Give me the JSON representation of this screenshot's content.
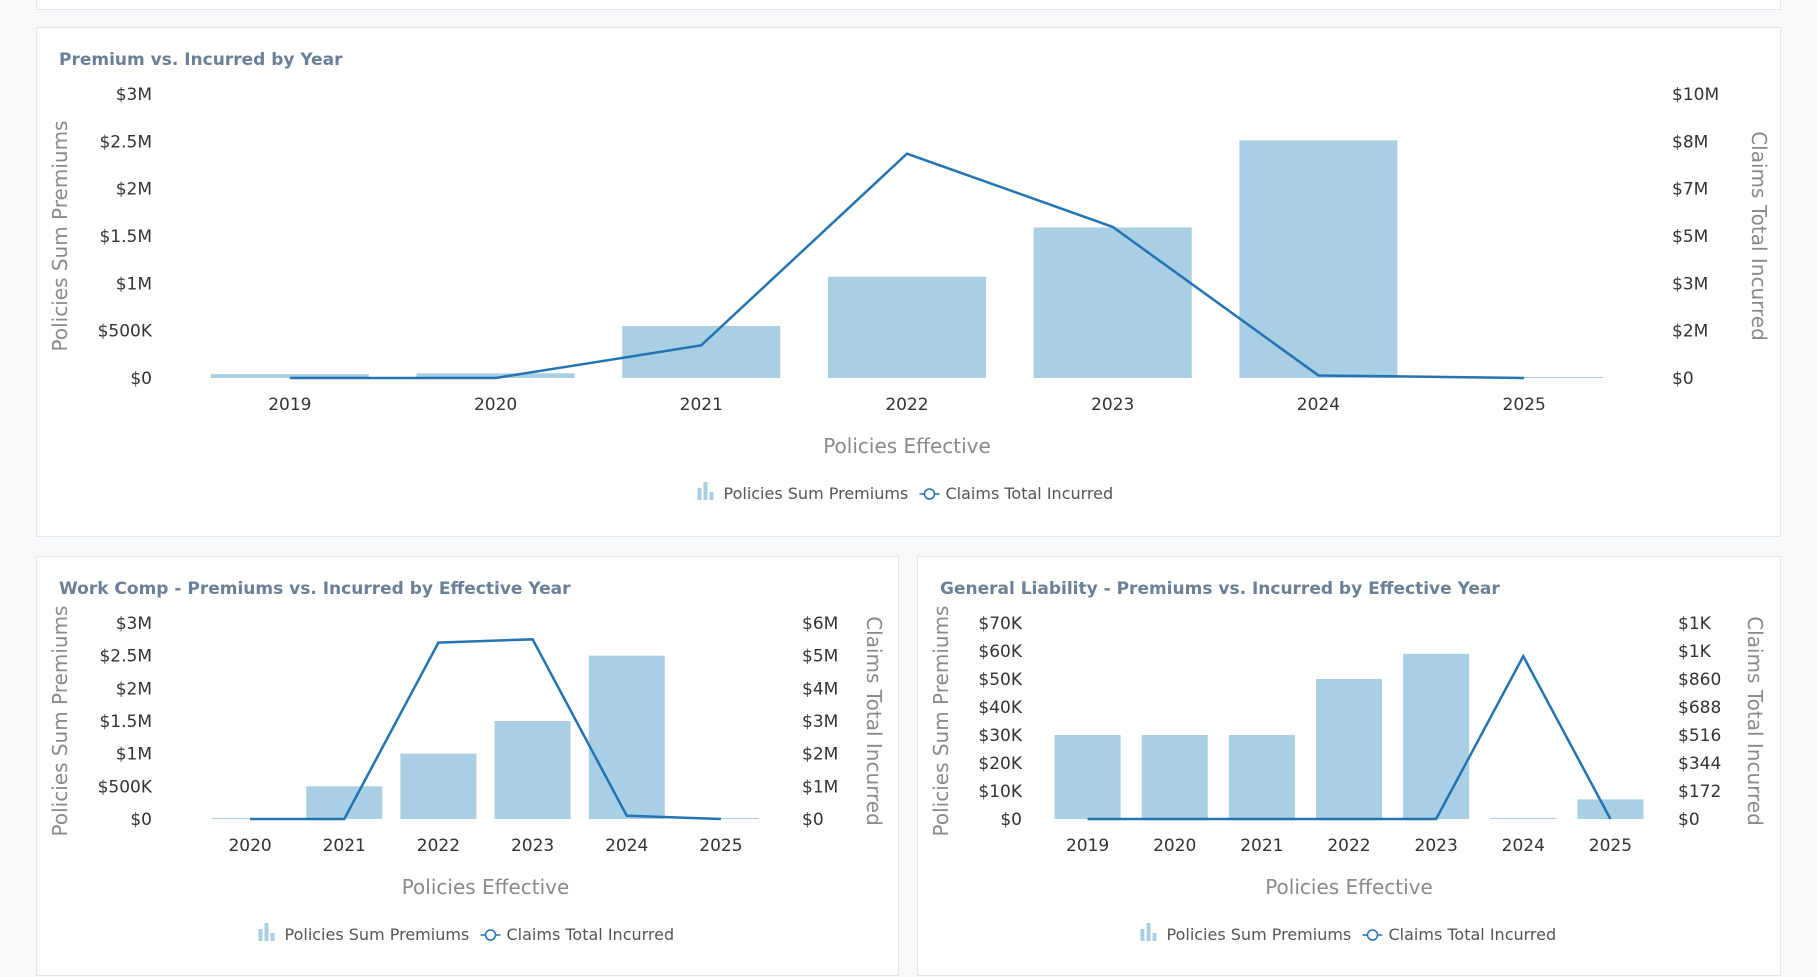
{
  "colors": {
    "bar": "#a8cfe3",
    "line": "#2473b2"
  },
  "legend": {
    "bars": "Policies Sum Premiums",
    "line": "Claims Total Incurred"
  },
  "charts": [
    {
      "title": "Premium vs. Incurred by Year",
      "chart_data": {
        "type": "bar",
        "title": "Premium vs. Incurred by Year",
        "xlabel": "Policies Effective",
        "ylabel": "Policies Sum Premiums",
        "y2label": "Claims Total Incurred",
        "categories": [
          "2019",
          "2020",
          "2021",
          "2022",
          "2023",
          "2024",
          "2025"
        ],
        "series": [
          {
            "name": "Policies Sum Premiums",
            "type": "bar",
            "axis": "left",
            "values": [
              40000,
              50000,
              550000,
              1070000,
              1590000,
              2510000,
              5000
            ]
          },
          {
            "name": "Claims Total Incurred",
            "type": "line",
            "axis": "right",
            "values": [
              0,
              0,
              1150000,
              7900000,
              5320000,
              90000,
              0
            ]
          }
        ],
        "ylim": [
          0,
          3000000
        ],
        "y2lim": [
          0,
          10000000
        ],
        "yticks": [
          "$0",
          "$500K",
          "$1M",
          "$1.5M",
          "$2M",
          "$2.5M",
          "$3M"
        ],
        "y2ticks": [
          "$0",
          "$2M",
          "$3M",
          "$5M",
          "$7M",
          "$8M",
          "$10M"
        ],
        "grid": false,
        "legend_position": "bottom"
      }
    },
    {
      "title": "Work Comp - Premiums vs. Incurred by Effective Year",
      "chart_data": {
        "type": "bar",
        "title": "Work Comp - Premiums vs. Incurred by Effective Year",
        "xlabel": "Policies Effective",
        "ylabel": "Policies Sum Premiums",
        "y2label": "Claims Total Incurred",
        "categories": [
          "2020",
          "2021",
          "2022",
          "2023",
          "2024",
          "2025"
        ],
        "series": [
          {
            "name": "Policies Sum Premiums",
            "type": "bar",
            "axis": "left",
            "values": [
              0,
              500000,
              1000000,
              1500000,
              2500000,
              0
            ]
          },
          {
            "name": "Claims Total Incurred",
            "type": "line",
            "axis": "right",
            "values": [
              0,
              0,
              5400000,
              5500000,
              100000,
              0
            ]
          }
        ],
        "ylim": [
          0,
          3000000
        ],
        "y2lim": [
          0,
          6000000
        ],
        "yticks": [
          "$0",
          "$500K",
          "$1M",
          "$1.5M",
          "$2M",
          "$2.5M",
          "$3M"
        ],
        "y2ticks": [
          "$0",
          "$1M",
          "$2M",
          "$3M",
          "$4M",
          "$5M",
          "$6M"
        ],
        "grid": false,
        "legend_position": "bottom"
      }
    },
    {
      "title": "General Liability - Premiums vs. Incurred by Effective Year",
      "chart_data": {
        "type": "bar",
        "title": "General Liability - Premiums vs. Incurred by Effective Year",
        "xlabel": "Policies Effective",
        "ylabel": "Policies Sum Premiums",
        "y2label": "Claims Total Incurred",
        "categories": [
          "2019",
          "2020",
          "2021",
          "2022",
          "2023",
          "2024",
          "2025"
        ],
        "series": [
          {
            "name": "Policies Sum Premiums",
            "type": "bar",
            "axis": "left",
            "values": [
              30000,
              30000,
              30000,
              50000,
              59000,
              300,
              7000
            ]
          },
          {
            "name": "Claims Total Incurred",
            "type": "line",
            "axis": "right",
            "values": [
              0,
              0,
              0,
              0,
              0,
              1000,
              0
            ]
          }
        ],
        "ylim": [
          0,
          70000
        ],
        "y2lim": [
          0,
          1204
        ],
        "yticks": [
          "$0",
          "$10K",
          "$20K",
          "$30K",
          "$40K",
          "$50K",
          "$60K",
          "$70K"
        ],
        "y2ticks": [
          "$0",
          "$172",
          "$344",
          "$516",
          "$688",
          "$860",
          "$1K",
          "$1K"
        ],
        "grid": false,
        "legend_position": "bottom"
      }
    }
  ]
}
